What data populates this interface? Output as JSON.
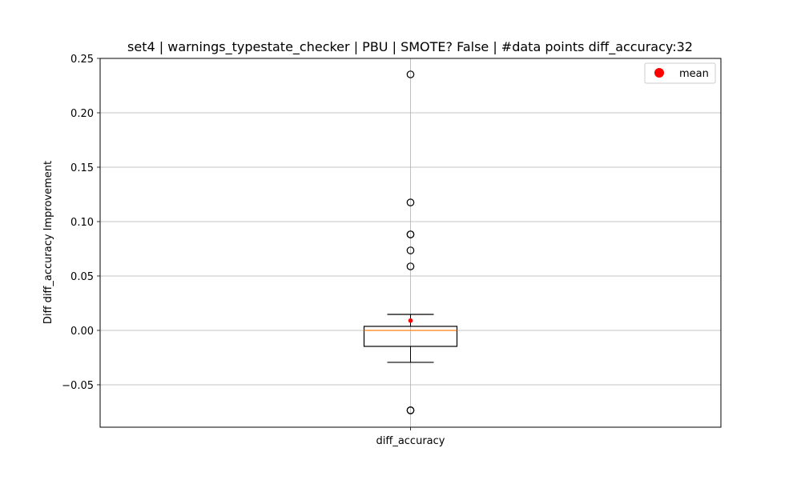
{
  "chart_data": {
    "type": "box",
    "title": "set4 | warnings_typestate_checker | PBU | SMOTE? False | #data points diff_accuracy:32",
    "xlabel": "",
    "ylabel": "Diff diff_accuracy Improvement",
    "categories": [
      "diff_accuracy"
    ],
    "ylim": [
      -0.089,
      0.25
    ],
    "yticks": [
      -0.05,
      0.0,
      0.05,
      0.1,
      0.15,
      0.2,
      0.25
    ],
    "ytick_labels": [
      "−0.05",
      "0.00",
      "0.05",
      "0.10",
      "0.15",
      "0.20",
      "0.25"
    ],
    "grid": true,
    "legend": {
      "placement": "top-right",
      "entries": [
        "mean"
      ]
    },
    "series": [
      {
        "category": "diff_accuracy",
        "whisker_low": -0.0294,
        "q1": -0.0147,
        "median": 0.0,
        "q3": 0.0037,
        "whisker_high": 0.0147,
        "mean": 0.009,
        "outliers": [
          0.2353,
          0.1176,
          0.0882,
          0.0882,
          0.0735,
          0.0588,
          -0.0735,
          -0.0735
        ]
      }
    ],
    "colors": {
      "box": "#000000",
      "median": "#ff7f0e",
      "mean": "#ff0000",
      "grid": "#b0b0b0"
    }
  }
}
